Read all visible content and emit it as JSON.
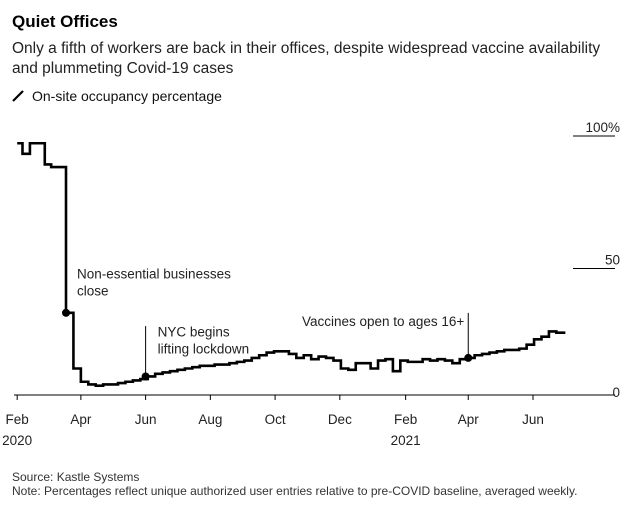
{
  "header": {
    "title": "Quiet Offices",
    "subtitle": "Only a fifth of workers are back in their offices, despite widespread vaccine availability and plummeting Covid-19 cases"
  },
  "footer": {
    "source": "Source: Kastle Systems",
    "note": "Note: Percentages reflect unique authorized user entries relative to pre-COVID baseline, averaged weekly."
  },
  "colors": {
    "line": "#000000",
    "axis": "#000000",
    "text": "#222222"
  },
  "icons": {
    "legend": "diagonal-line-icon"
  },
  "chart_data": {
    "type": "line",
    "step": true,
    "title": "Quiet Offices",
    "subtitle": "Only a fifth of workers are back in their offices, despite widespread vaccine availability and plummeting Covid-19 cases",
    "xlabel": "",
    "ylabel": "",
    "xlim": [
      "2020-01-29",
      "2021-07-20"
    ],
    "ylim": [
      0,
      100
    ],
    "y_ticks": [
      {
        "value": 0,
        "label": "0"
      },
      {
        "value": 50,
        "label": "50"
      },
      {
        "value": 100,
        "label": "100%"
      }
    ],
    "x_ticks": [
      {
        "date": "2020-02-01",
        "label": "Feb",
        "sublabel": "2020"
      },
      {
        "date": "2020-04-01",
        "label": "Apr",
        "sublabel": ""
      },
      {
        "date": "2020-06-01",
        "label": "Jun",
        "sublabel": ""
      },
      {
        "date": "2020-08-01",
        "label": "Aug",
        "sublabel": ""
      },
      {
        "date": "2020-10-01",
        "label": "Oct",
        "sublabel": ""
      },
      {
        "date": "2020-12-01",
        "label": "Dec",
        "sublabel": ""
      },
      {
        "date": "2021-02-01",
        "label": "Feb",
        "sublabel": "2021"
      },
      {
        "date": "2021-04-01",
        "label": "Apr",
        "sublabel": ""
      },
      {
        "date": "2021-06-01",
        "label": "Jun",
        "sublabel": ""
      }
    ],
    "grid": false,
    "legend": "top-left",
    "series": [
      {
        "name": "On-site occupancy percentage",
        "x": [
          "2020-02-01",
          "2020-02-06",
          "2020-02-13",
          "2020-02-20",
          "2020-02-27",
          "2020-03-04",
          "2020-03-11",
          "2020-03-18",
          "2020-03-25",
          "2020-04-01",
          "2020-04-08",
          "2020-04-15",
          "2020-04-22",
          "2020-04-29",
          "2020-05-06",
          "2020-05-13",
          "2020-05-20",
          "2020-05-27",
          "2020-06-03",
          "2020-06-10",
          "2020-06-17",
          "2020-06-24",
          "2020-07-01",
          "2020-07-08",
          "2020-07-15",
          "2020-07-22",
          "2020-07-29",
          "2020-08-05",
          "2020-08-12",
          "2020-08-19",
          "2020-08-26",
          "2020-09-02",
          "2020-09-09",
          "2020-09-16",
          "2020-09-23",
          "2020-09-30",
          "2020-10-07",
          "2020-10-14",
          "2020-10-21",
          "2020-10-28",
          "2020-11-04",
          "2020-11-11",
          "2020-11-18",
          "2020-11-25",
          "2020-12-02",
          "2020-12-09",
          "2020-12-16",
          "2020-12-23",
          "2020-12-30",
          "2021-01-06",
          "2021-01-13",
          "2021-01-20",
          "2021-01-27",
          "2021-02-03",
          "2021-02-10",
          "2021-02-17",
          "2021-02-24",
          "2021-03-03",
          "2021-03-10",
          "2021-03-17",
          "2021-03-24",
          "2021-03-31",
          "2021-04-07",
          "2021-04-14",
          "2021-04-21",
          "2021-04-28",
          "2021-05-05",
          "2021-05-12",
          "2021-05-19",
          "2021-05-26",
          "2021-06-02",
          "2021-06-09",
          "2021-06-16",
          "2021-06-23"
        ],
        "values": [
          95,
          91,
          95,
          95,
          87,
          86,
          86,
          31,
          10,
          5,
          4,
          3.5,
          4,
          4,
          4.5,
          5,
          5.5,
          6,
          7,
          8,
          8.5,
          9,
          9.5,
          10,
          10.5,
          11,
          11,
          11.5,
          11.5,
          12,
          12.5,
          13,
          14,
          15,
          16,
          16.5,
          16.5,
          15.5,
          14,
          15,
          13.5,
          14.5,
          14,
          13,
          10,
          9.5,
          12,
          12,
          10,
          13,
          13.5,
          9,
          13,
          12.5,
          12.5,
          13.5,
          13,
          13.5,
          13,
          12,
          13.5,
          14,
          15,
          15.5,
          16,
          16.5,
          17,
          17,
          17.5,
          19,
          21,
          22,
          24,
          23.5
        ]
      }
    ],
    "annotations": [
      {
        "date": "2020-03-18",
        "value": 31,
        "text": [
          "Non-essential businesses",
          "close"
        ]
      },
      {
        "date": "2020-06-01",
        "value": 7,
        "text": [
          "NYC begins",
          "lifting lockdown"
        ]
      },
      {
        "date": "2021-04-01",
        "value": 14,
        "text": [
          "Vaccines open to ages 16+"
        ]
      }
    ]
  }
}
